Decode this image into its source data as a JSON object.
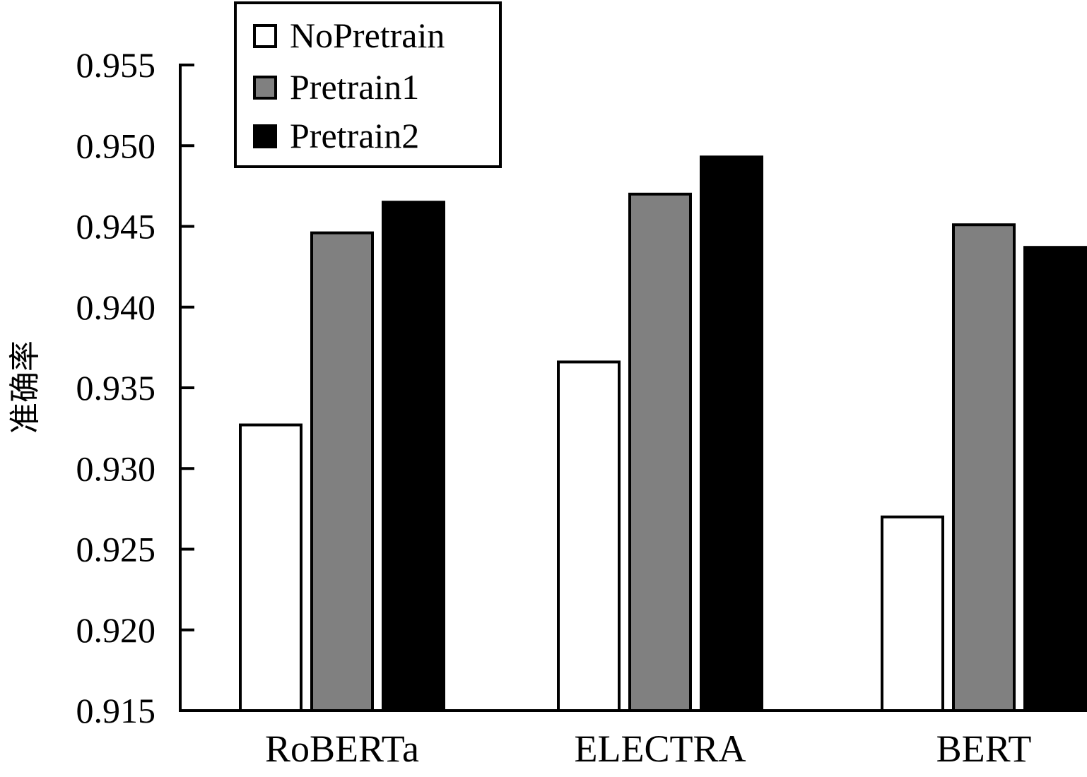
{
  "chart_data": {
    "type": "bar",
    "title": "",
    "xlabel": "",
    "ylabel": "准确率",
    "categories": [
      "RoBERTa",
      "ELECTRA",
      "BERT"
    ],
    "series": [
      {
        "name": "NoPretrain",
        "color": "#ffffff",
        "values": [
          0.9327,
          0.9366,
          0.927
        ]
      },
      {
        "name": "Pretrain1",
        "color": "#808080",
        "values": [
          0.9446,
          0.947,
          0.9451
        ]
      },
      {
        "name": "Pretrain2",
        "color": "#000000",
        "values": [
          0.9465,
          0.9493,
          0.9437
        ]
      }
    ],
    "ylim": [
      0.915,
      0.955
    ],
    "yticks": [
      "0.915",
      "0.920",
      "0.925",
      "0.930",
      "0.935",
      "0.940",
      "0.945",
      "0.950",
      "0.955"
    ],
    "grid": false,
    "legend_position": "top-left"
  }
}
